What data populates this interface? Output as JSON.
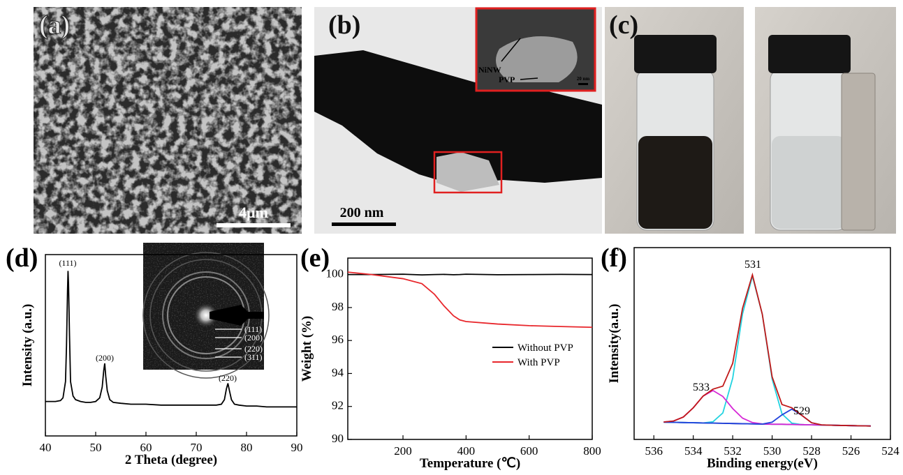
{
  "panels": [
    {
      "label": "(a)",
      "scale_bar": "4μm"
    },
    {
      "label": "(b)",
      "scale_bar": "200 nm",
      "inset_labels": [
        "NiNW",
        "PVP"
      ],
      "inset_scale_bar": "20 nm"
    },
    {
      "label": "(c)"
    }
  ],
  "chart_data": [
    {
      "type": "line",
      "panel_label": "(d)",
      "xlabel": "2 Theta (degree)",
      "ylabel": "Intensity (a.u.)",
      "x": [
        40,
        41,
        42,
        43,
        43.5,
        44,
        44.2,
        44.4,
        44.5,
        44.6,
        44.8,
        45,
        45.5,
        46,
        47,
        48,
        49,
        50,
        50.8,
        51.3,
        51.6,
        51.8,
        52,
        52.3,
        52.8,
        53.5,
        55,
        57,
        60,
        63,
        66,
        69,
        72,
        74,
        75,
        75.6,
        76,
        76.3,
        76.6,
        77,
        77.6,
        78.5,
        80,
        82,
        84,
        86,
        88,
        90
      ],
      "series": [
        {
          "color": "#000000",
          "values": [
            19,
            19,
            19,
            19.5,
            21,
            30,
            50,
            80,
            91,
            84,
            55,
            30,
            22,
            20,
            19,
            18.5,
            18.5,
            19,
            21,
            27,
            36,
            40,
            33,
            25,
            20,
            18.5,
            18,
            17.5,
            17.5,
            17,
            17,
            17,
            17,
            17,
            17.5,
            20,
            26,
            29,
            25,
            20,
            17.5,
            17,
            16.5,
            16.5,
            16,
            16,
            16,
            16
          ]
        }
      ],
      "xlim": [
        40,
        90
      ],
      "xticks": [
        40,
        50,
        60,
        70,
        80,
        90
      ],
      "ylim": [
        0,
        100
      ],
      "annotations": [
        "(111)",
        "(200)",
        "(220)"
      ],
      "inset_labels": [
        "(111)",
        "(200)",
        "(220)",
        "(311)"
      ]
    },
    {
      "type": "line",
      "panel_label": "(e)",
      "xlabel": "Temperature (℃)",
      "ylabel": "Weight (%)",
      "x": [
        25,
        100,
        200,
        260,
        300,
        330,
        360,
        380,
        400,
        500,
        600,
        700,
        800
      ],
      "series": [
        {
          "name": "Without PVP",
          "color": "#000000",
          "values": [
            100,
            100,
            100.02,
            99.98,
            100,
            100.01,
            99.99,
            100,
            100.02,
            99.99,
            100,
            100.01,
            100
          ]
        },
        {
          "name": "With PVP",
          "color": "#e8262b",
          "values": [
            100.15,
            100.0,
            99.75,
            99.45,
            98.8,
            98.1,
            97.5,
            97.25,
            97.15,
            97.0,
            96.9,
            96.85,
            96.8
          ]
        }
      ],
      "xlim": [
        25,
        800
      ],
      "xticks": [
        200,
        400,
        600,
        800
      ],
      "ylim": [
        90,
        101
      ],
      "yticks": [
        90,
        92,
        94,
        96,
        98,
        100
      ],
      "legend": "lower right"
    },
    {
      "type": "line",
      "panel_label": "(f)",
      "xlabel": "Binding energy(eV)",
      "ylabel": "Intensity(a.u.)",
      "x": [
        535.5,
        535,
        534.5,
        534,
        533.5,
        533,
        532.5,
        532,
        531.5,
        531,
        530.5,
        530,
        529.5,
        529,
        528.5,
        528,
        527.5,
        527,
        526.5,
        526,
        525.5,
        525
      ],
      "series": [
        {
          "color": "#1a1a8c",
          "values": [
            9.0,
            8.9,
            8.8,
            8.7,
            8.6,
            8.5,
            8.4,
            8.3,
            8.2,
            8.1,
            8.0,
            7.9,
            7.9,
            7.8,
            7.7,
            7.6,
            7.5,
            7.4,
            7.3,
            7.2,
            7.1,
            7.0
          ]
        },
        {
          "color": "#22d3e0",
          "values": [
            9.0,
            8.9,
            8.8,
            8.7,
            8.6,
            9.2,
            13.8,
            31.9,
            65.5,
            85.1,
            65.3,
            31.5,
            13.3,
            8.5,
            7.7,
            7.6,
            7.5,
            7.4,
            7.3,
            7.2,
            7.1,
            7.0
          ]
        },
        {
          "color": "#d628d6",
          "values": [
            9.1,
            9.6,
            11.7,
            16.5,
            22.6,
            25.5,
            22.4,
            16.1,
            11.1,
            8.8,
            8.1,
            7.9,
            7.9,
            7.8,
            7.7,
            7.6,
            7.5,
            7.4,
            7.3,
            7.2,
            7.1,
            7.0
          ]
        },
        {
          "color": "#2244dd",
          "values": [
            9.0,
            8.9,
            8.8,
            8.7,
            8.6,
            8.5,
            8.4,
            8.3,
            8.2,
            8.1,
            8.0,
            9.0,
            12.8,
            15.8,
            12.6,
            8.7,
            7.6,
            7.4,
            7.3,
            7.2,
            7.1,
            7.0
          ]
        },
        {
          "color": "#c01818",
          "values": [
            9.1,
            9.6,
            11.7,
            16.5,
            22.6,
            26.2,
            27.8,
            39.7,
            68.4,
            85.8,
            65.3,
            32.6,
            18.2,
            16.5,
            12.6,
            8.7,
            7.6,
            7.4,
            7.3,
            7.2,
            7.1,
            7.0
          ]
        }
      ],
      "xlim": [
        537,
        524
      ],
      "xticks": [
        536,
        534,
        532,
        530,
        528,
        526,
        524
      ],
      "ylim": [
        0,
        100
      ],
      "annotations": [
        "531",
        "533",
        "529"
      ]
    }
  ]
}
